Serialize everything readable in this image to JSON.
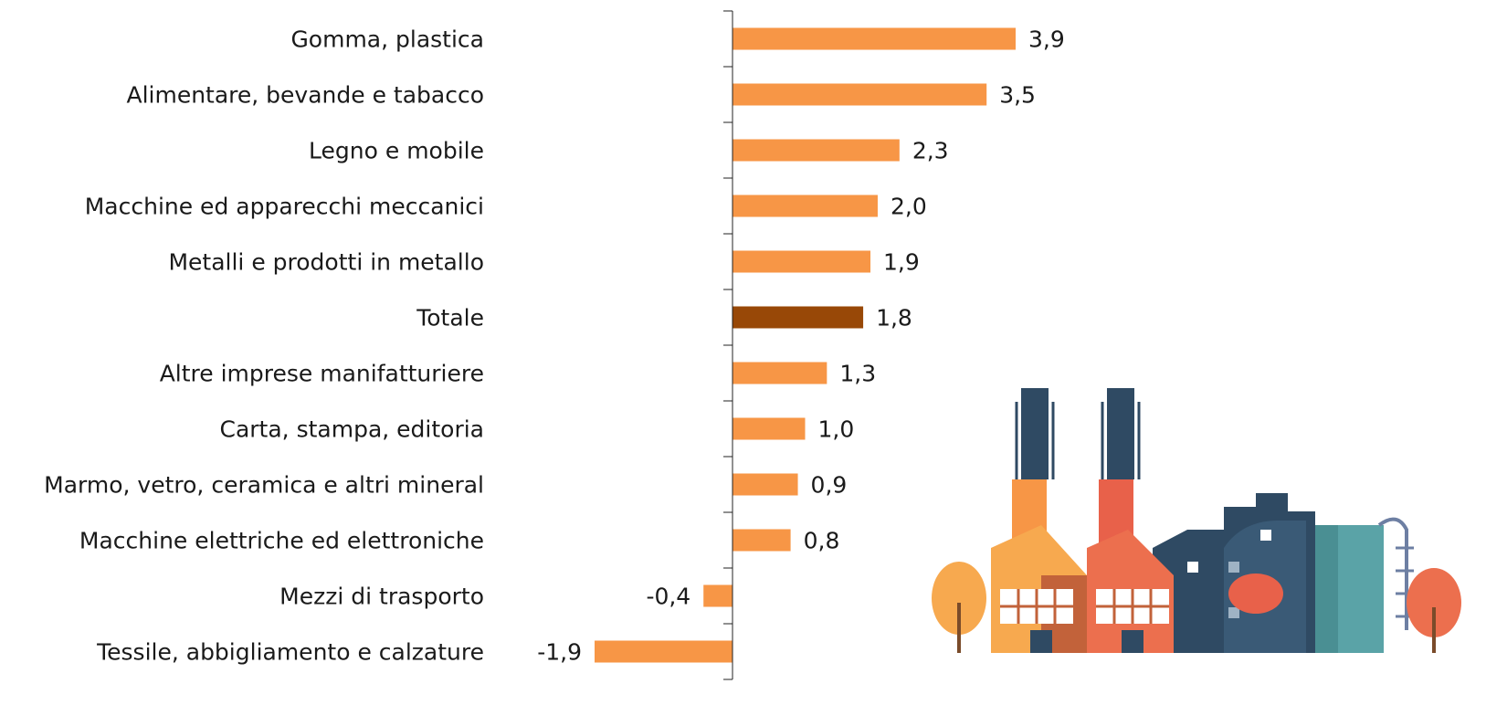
{
  "chart_data": {
    "type": "hbar",
    "categories": [
      "Gomma, plastica",
      "Alimentare, bevande e tabacco",
      "Legno e mobile",
      "Macchine ed apparecchi meccanici",
      "Metalli e prodotti in metallo",
      "Totale",
      "Altre imprese manifatturiere",
      "Carta, stampa, editoria",
      "Marmo, vetro, ceramica e altri mineral",
      "Macchine elettriche ed elettroniche",
      "Mezzi di trasporto",
      "Tessile, abbigliamento e calzature"
    ],
    "values": [
      3.9,
      3.5,
      2.3,
      2.0,
      1.9,
      1.8,
      1.3,
      1.0,
      0.9,
      0.8,
      -0.4,
      -1.9
    ],
    "value_labels": [
      "3,9",
      "3,5",
      "2,3",
      "2,0",
      "1,9",
      "1,8",
      "1,3",
      "1,0",
      "0,9",
      "0,8",
      "-0,4",
      "-1,9"
    ],
    "colors": [
      "#f79646",
      "#f79646",
      "#f79646",
      "#f79646",
      "#f79646",
      "#984807",
      "#f79646",
      "#f79646",
      "#f79646",
      "#f79646",
      "#f79646",
      "#f79646"
    ]
  }
}
